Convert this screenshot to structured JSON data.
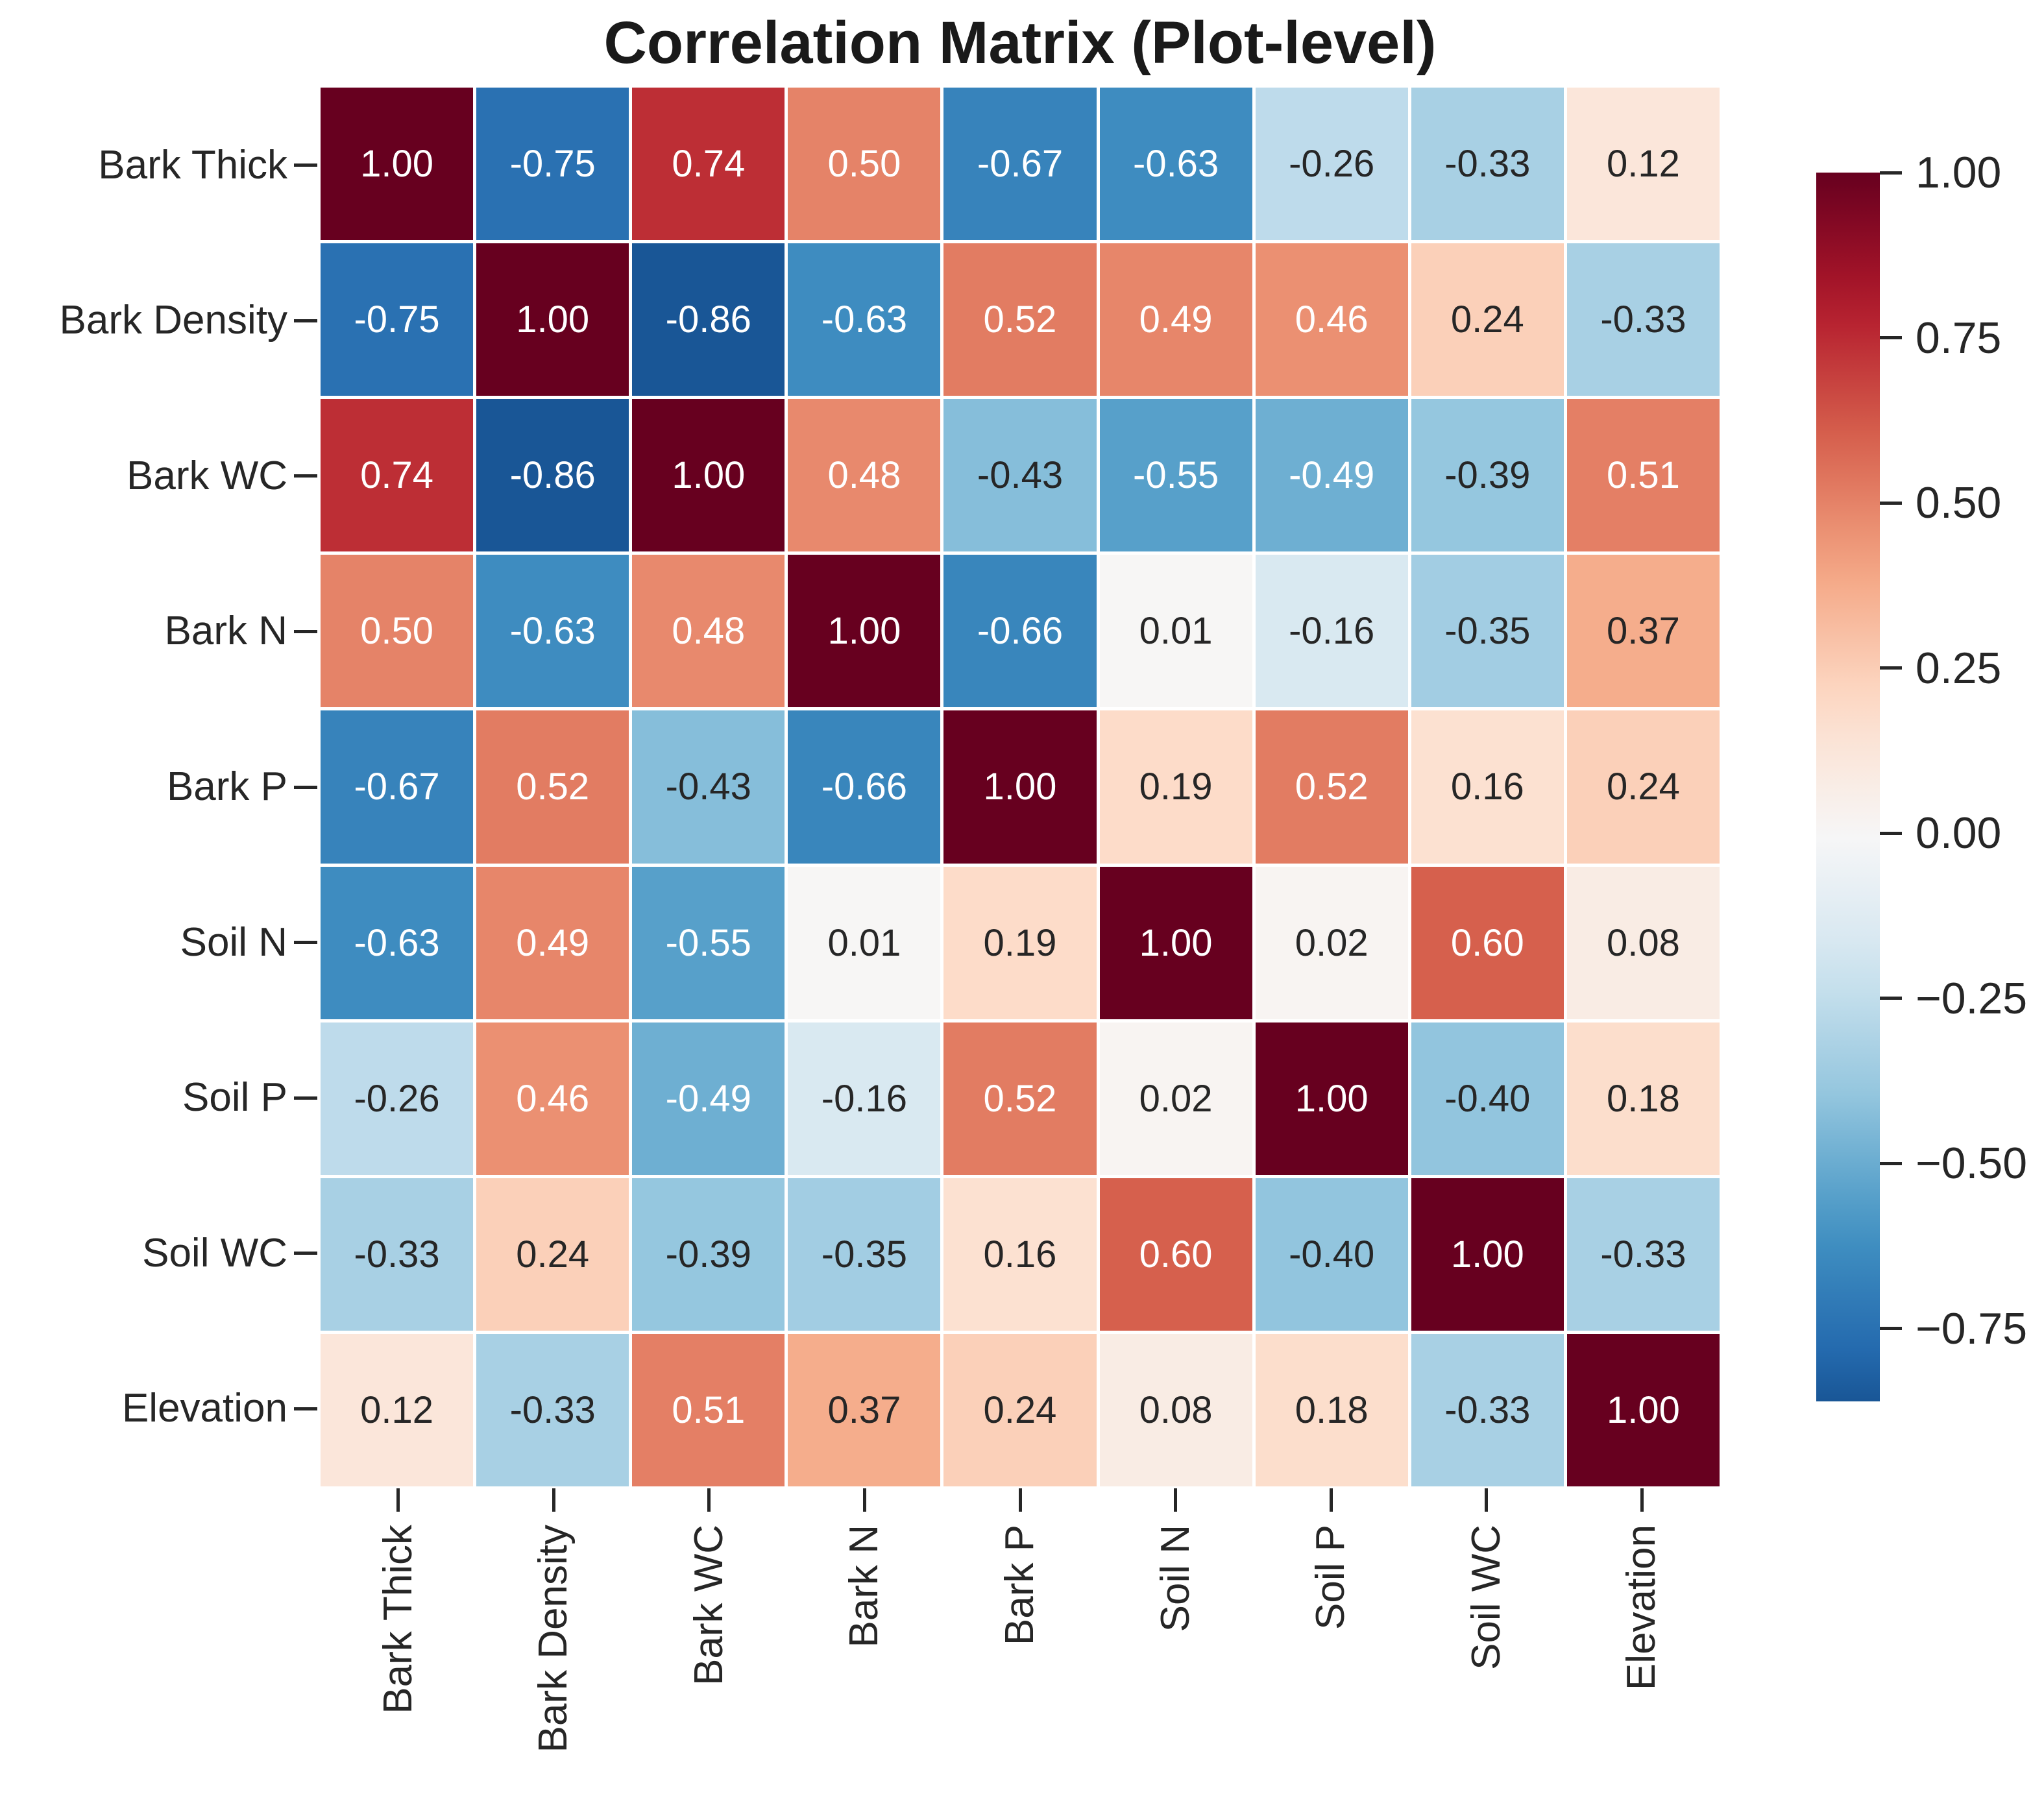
{
  "title": "Correlation Matrix (Plot-level)",
  "chart_data": {
    "type": "heatmap",
    "title": "Correlation Matrix (Plot-level)",
    "x_categories": [
      "Bark Thick",
      "Bark Density",
      "Bark WC",
      "Bark N",
      "Bark P",
      "Soil N",
      "Soil P",
      "Soil WC",
      "Elevation"
    ],
    "y_categories": [
      "Bark Thick",
      "Bark Density",
      "Bark WC",
      "Bark N",
      "Bark P",
      "Soil N",
      "Soil P",
      "Soil WC",
      "Elevation"
    ],
    "matrix": [
      [
        1.0,
        -0.75,
        0.74,
        0.5,
        -0.67,
        -0.63,
        -0.26,
        -0.33,
        0.12
      ],
      [
        -0.75,
        1.0,
        -0.86,
        -0.63,
        0.52,
        0.49,
        0.46,
        0.24,
        -0.33
      ],
      [
        0.74,
        -0.86,
        1.0,
        0.48,
        -0.43,
        -0.55,
        -0.49,
        -0.39,
        0.51
      ],
      [
        0.5,
        -0.63,
        0.48,
        1.0,
        -0.66,
        0.01,
        -0.16,
        -0.35,
        0.37
      ],
      [
        -0.67,
        0.52,
        -0.43,
        -0.66,
        1.0,
        0.19,
        0.52,
        0.16,
        0.24
      ],
      [
        -0.63,
        0.49,
        -0.55,
        0.01,
        0.19,
        1.0,
        0.02,
        0.6,
        0.08
      ],
      [
        -0.26,
        0.46,
        -0.49,
        -0.16,
        0.52,
        0.02,
        1.0,
        -0.4,
        0.18
      ],
      [
        -0.33,
        0.24,
        -0.39,
        -0.35,
        0.16,
        0.6,
        -0.4,
        1.0,
        -0.33
      ],
      [
        0.12,
        -0.33,
        0.51,
        0.37,
        0.24,
        0.08,
        0.18,
        -0.33,
        1.0
      ]
    ],
    "annotation_decimals": 2,
    "colormap": {
      "name": "RdBu_r",
      "norm_vmin": -1,
      "norm_vmax": 1,
      "stops": [
        "#053061",
        "#2166ac",
        "#4393c3",
        "#92c5de",
        "#d1e5f0",
        "#f7f7f7",
        "#fddbc7",
        "#f4a582",
        "#d6604d",
        "#b2182b",
        "#67001f"
      ]
    },
    "colorbar": {
      "position": "right",
      "value_top": 1.0,
      "value_bottom": -0.86,
      "tick_values": [
        1.0,
        0.75,
        0.5,
        0.25,
        0.0,
        -0.25,
        -0.5,
        -0.75
      ],
      "tick_labels": [
        "1.00",
        "0.75",
        "0.50",
        "0.25",
        "0.00",
        "−0.25",
        "−0.50",
        "−0.75"
      ]
    },
    "grid_line_color": "#ffffff",
    "background_color": "#ffffff",
    "annotation_text_dark": "#262626",
    "annotation_text_light": "#ffffff",
    "axis_text_color": "#262626",
    "xlabel": "",
    "ylabel": "",
    "x_tick_rotation_deg": 90
  }
}
